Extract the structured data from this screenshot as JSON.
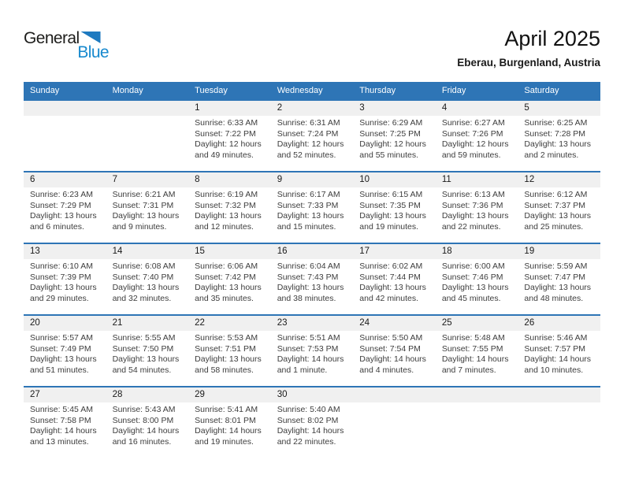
{
  "logo": {
    "line1": "General",
    "line2": "Blue"
  },
  "header": {
    "title": "April 2025",
    "location": "Eberau, Burgenland, Austria"
  },
  "colors": {
    "header_blue": "#2e75b6",
    "row_border_blue": "#2e75b6",
    "day_strip_gray": "#f0f0f0",
    "logo_text_blue": "#1789ce",
    "logo_triangle_blue": "#1e7ac0"
  },
  "weekdays": [
    "Sunday",
    "Monday",
    "Tuesday",
    "Wednesday",
    "Thursday",
    "Friday",
    "Saturday"
  ],
  "weeks": [
    [
      {
        "day": "",
        "sunrise": "",
        "sunset": "",
        "daylight": ""
      },
      {
        "day": "",
        "sunrise": "",
        "sunset": "",
        "daylight": ""
      },
      {
        "day": "1",
        "sunrise": "Sunrise: 6:33 AM",
        "sunset": "Sunset: 7:22 PM",
        "daylight": "Daylight: 12 hours and 49 minutes."
      },
      {
        "day": "2",
        "sunrise": "Sunrise: 6:31 AM",
        "sunset": "Sunset: 7:24 PM",
        "daylight": "Daylight: 12 hours and 52 minutes."
      },
      {
        "day": "3",
        "sunrise": "Sunrise: 6:29 AM",
        "sunset": "Sunset: 7:25 PM",
        "daylight": "Daylight: 12 hours and 55 minutes."
      },
      {
        "day": "4",
        "sunrise": "Sunrise: 6:27 AM",
        "sunset": "Sunset: 7:26 PM",
        "daylight": "Daylight: 12 hours and 59 minutes."
      },
      {
        "day": "5",
        "sunrise": "Sunrise: 6:25 AM",
        "sunset": "Sunset: 7:28 PM",
        "daylight": "Daylight: 13 hours and 2 minutes."
      }
    ],
    [
      {
        "day": "6",
        "sunrise": "Sunrise: 6:23 AM",
        "sunset": "Sunset: 7:29 PM",
        "daylight": "Daylight: 13 hours and 6 minutes."
      },
      {
        "day": "7",
        "sunrise": "Sunrise: 6:21 AM",
        "sunset": "Sunset: 7:31 PM",
        "daylight": "Daylight: 13 hours and 9 minutes."
      },
      {
        "day": "8",
        "sunrise": "Sunrise: 6:19 AM",
        "sunset": "Sunset: 7:32 PM",
        "daylight": "Daylight: 13 hours and 12 minutes."
      },
      {
        "day": "9",
        "sunrise": "Sunrise: 6:17 AM",
        "sunset": "Sunset: 7:33 PM",
        "daylight": "Daylight: 13 hours and 15 minutes."
      },
      {
        "day": "10",
        "sunrise": "Sunrise: 6:15 AM",
        "sunset": "Sunset: 7:35 PM",
        "daylight": "Daylight: 13 hours and 19 minutes."
      },
      {
        "day": "11",
        "sunrise": "Sunrise: 6:13 AM",
        "sunset": "Sunset: 7:36 PM",
        "daylight": "Daylight: 13 hours and 22 minutes."
      },
      {
        "day": "12",
        "sunrise": "Sunrise: 6:12 AM",
        "sunset": "Sunset: 7:37 PM",
        "daylight": "Daylight: 13 hours and 25 minutes."
      }
    ],
    [
      {
        "day": "13",
        "sunrise": "Sunrise: 6:10 AM",
        "sunset": "Sunset: 7:39 PM",
        "daylight": "Daylight: 13 hours and 29 minutes."
      },
      {
        "day": "14",
        "sunrise": "Sunrise: 6:08 AM",
        "sunset": "Sunset: 7:40 PM",
        "daylight": "Daylight: 13 hours and 32 minutes."
      },
      {
        "day": "15",
        "sunrise": "Sunrise: 6:06 AM",
        "sunset": "Sunset: 7:42 PM",
        "daylight": "Daylight: 13 hours and 35 minutes."
      },
      {
        "day": "16",
        "sunrise": "Sunrise: 6:04 AM",
        "sunset": "Sunset: 7:43 PM",
        "daylight": "Daylight: 13 hours and 38 minutes."
      },
      {
        "day": "17",
        "sunrise": "Sunrise: 6:02 AM",
        "sunset": "Sunset: 7:44 PM",
        "daylight": "Daylight: 13 hours and 42 minutes."
      },
      {
        "day": "18",
        "sunrise": "Sunrise: 6:00 AM",
        "sunset": "Sunset: 7:46 PM",
        "daylight": "Daylight: 13 hours and 45 minutes."
      },
      {
        "day": "19",
        "sunrise": "Sunrise: 5:59 AM",
        "sunset": "Sunset: 7:47 PM",
        "daylight": "Daylight: 13 hours and 48 minutes."
      }
    ],
    [
      {
        "day": "20",
        "sunrise": "Sunrise: 5:57 AM",
        "sunset": "Sunset: 7:49 PM",
        "daylight": "Daylight: 13 hours and 51 minutes."
      },
      {
        "day": "21",
        "sunrise": "Sunrise: 5:55 AM",
        "sunset": "Sunset: 7:50 PM",
        "daylight": "Daylight: 13 hours and 54 minutes."
      },
      {
        "day": "22",
        "sunrise": "Sunrise: 5:53 AM",
        "sunset": "Sunset: 7:51 PM",
        "daylight": "Daylight: 13 hours and 58 minutes."
      },
      {
        "day": "23",
        "sunrise": "Sunrise: 5:51 AM",
        "sunset": "Sunset: 7:53 PM",
        "daylight": "Daylight: 14 hours and 1 minute."
      },
      {
        "day": "24",
        "sunrise": "Sunrise: 5:50 AM",
        "sunset": "Sunset: 7:54 PM",
        "daylight": "Daylight: 14 hours and 4 minutes."
      },
      {
        "day": "25",
        "sunrise": "Sunrise: 5:48 AM",
        "sunset": "Sunset: 7:55 PM",
        "daylight": "Daylight: 14 hours and 7 minutes."
      },
      {
        "day": "26",
        "sunrise": "Sunrise: 5:46 AM",
        "sunset": "Sunset: 7:57 PM",
        "daylight": "Daylight: 14 hours and 10 minutes."
      }
    ],
    [
      {
        "day": "27",
        "sunrise": "Sunrise: 5:45 AM",
        "sunset": "Sunset: 7:58 PM",
        "daylight": "Daylight: 14 hours and 13 minutes."
      },
      {
        "day": "28",
        "sunrise": "Sunrise: 5:43 AM",
        "sunset": "Sunset: 8:00 PM",
        "daylight": "Daylight: 14 hours and 16 minutes."
      },
      {
        "day": "29",
        "sunrise": "Sunrise: 5:41 AM",
        "sunset": "Sunset: 8:01 PM",
        "daylight": "Daylight: 14 hours and 19 minutes."
      },
      {
        "day": "30",
        "sunrise": "Sunrise: 5:40 AM",
        "sunset": "Sunset: 8:02 PM",
        "daylight": "Daylight: 14 hours and 22 minutes."
      },
      {
        "day": "",
        "sunrise": "",
        "sunset": "",
        "daylight": ""
      },
      {
        "day": "",
        "sunrise": "",
        "sunset": "",
        "daylight": ""
      },
      {
        "day": "",
        "sunrise": "",
        "sunset": "",
        "daylight": ""
      }
    ]
  ]
}
